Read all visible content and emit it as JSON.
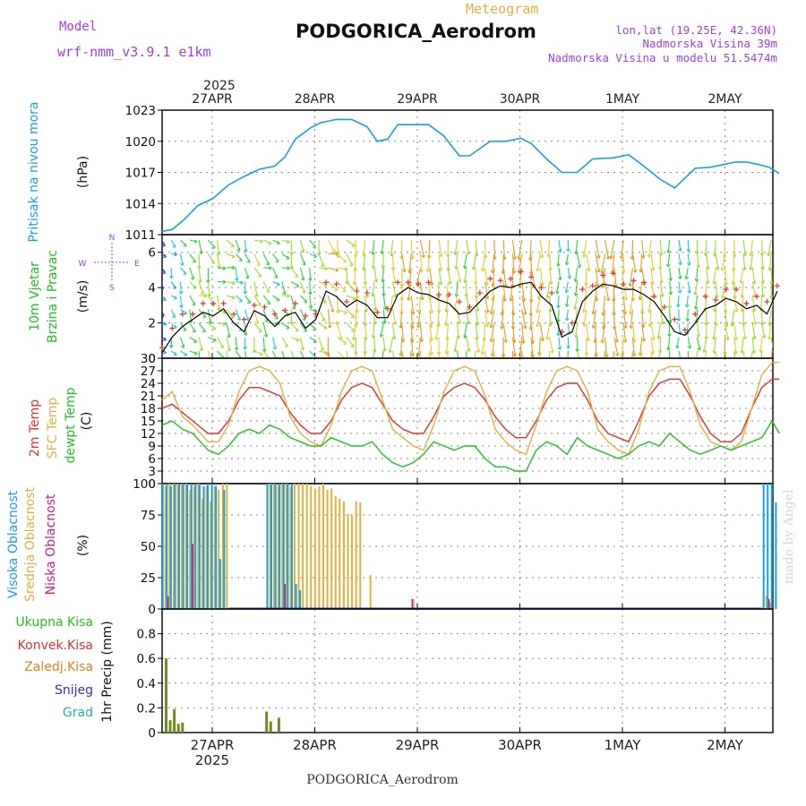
{
  "header": {
    "model_label": "Model",
    "model_name": "wrf-nmm_v3.9.1 e1km",
    "meteogram_label": "Meteogram",
    "station_title": "PODGORICA_Aerodrom",
    "coords": "lon,lat (19.25E, 42.36N)",
    "altitude": "Nadmorska Visina 39m",
    "model_altitude": "Nadmorska Visina u modelu 51.5474m",
    "footer": "PODGORICA_Aerodrom",
    "watermark": "made by Angel"
  },
  "colors": {
    "purple": "#a040e0",
    "gold": "#e0b040",
    "blue": "#1a9ee0",
    "green": "#20c020",
    "red": "#e03030",
    "orange": "#e08020",
    "olive": "#6e8a20",
    "indigo": "#3030c0",
    "magenta": "#c02090",
    "teal": "#20b0b0",
    "grid": "#888888"
  },
  "time_axis": {
    "year": "2025",
    "day_labels": [
      "27APR",
      "28APR",
      "29APR",
      "30APR",
      "1MAY",
      "2MAY"
    ]
  },
  "chart_data": [
    {
      "type": "line",
      "panel": "pressure",
      "ylabel_side": "Pritisak na nivou mora",
      "unit": "(hPa)",
      "ylim": [
        1011,
        1023
      ],
      "yticks": [
        1011,
        1014,
        1017,
        1020,
        1023
      ],
      "x_days": [
        0,
        0.1,
        0.2,
        0.35,
        0.5,
        0.65,
        0.8,
        0.95,
        1.1,
        1.2,
        1.3,
        1.45,
        1.55,
        1.7,
        1.85,
        2.0,
        2.1,
        2.2,
        2.3,
        2.45,
        2.6,
        2.75,
        2.9,
        3.0,
        3.2,
        3.35,
        3.5,
        3.6,
        3.75,
        3.9,
        4.05,
        4.2,
        4.4,
        4.55,
        4.7,
        4.85,
        5.0,
        5.2,
        5.35,
        5.5,
        5.6,
        5.7,
        5.8,
        5.92,
        6.02
      ],
      "series": [
        {
          "values": [
            1011.3,
            1011.5,
            1012.3,
            1013.8,
            1014.5,
            1015.8,
            1016.6,
            1017.3,
            1017.6,
            1018.5,
            1020.2,
            1021.3,
            1021.8,
            1022.1,
            1022.1,
            1021.4,
            1020.0,
            1020.2,
            1021.6,
            1021.6,
            1021.6,
            1020.5,
            1018.6,
            1018.6,
            1020.0,
            1020.0,
            1020.3,
            1019.8,
            1018.3,
            1017.0,
            1017.0,
            1018.3,
            1018.4,
            1018.7,
            1017.6,
            1016.4,
            1015.5,
            1017.4,
            1017.5,
            1017.8,
            1018.0,
            1018.0,
            1017.8,
            1017.5,
            1016.9
          ]
        }
      ]
    },
    {
      "type": "line",
      "panel": "wind",
      "ylabel_side": [
        "10m Vjetar",
        "Brzina i Pravac"
      ],
      "unit": "(m/s)",
      "compass": [
        "N",
        "S",
        "W",
        "E"
      ],
      "ylim": [
        0,
        7
      ],
      "yticks": [
        0,
        2,
        4,
        6
      ],
      "x_days": [
        0,
        0.1,
        0.2,
        0.3,
        0.4,
        0.5,
        0.6,
        0.7,
        0.8,
        0.9,
        1.0,
        1.1,
        1.2,
        1.3,
        1.4,
        1.5,
        1.6,
        1.7,
        1.8,
        1.9,
        2.0,
        2.1,
        2.2,
        2.3,
        2.4,
        2.5,
        2.6,
        2.7,
        2.8,
        2.9,
        3.0,
        3.1,
        3.2,
        3.3,
        3.4,
        3.5,
        3.6,
        3.7,
        3.8,
        3.9,
        4.0,
        4.1,
        4.2,
        4.3,
        4.4,
        4.5,
        4.6,
        4.7,
        4.8,
        4.9,
        5.0,
        5.1,
        5.2,
        5.3,
        5.4,
        5.5,
        5.6,
        5.7,
        5.8,
        5.9,
        6.0
      ],
      "series": [
        {
          "name": "speed",
          "values": [
            0.3,
            1.2,
            1.8,
            2.2,
            2.6,
            2.4,
            2.8,
            2.0,
            1.5,
            2.7,
            2.4,
            1.8,
            2.4,
            2.6,
            1.7,
            2.2,
            3.8,
            3.5,
            2.9,
            3.3,
            3.0,
            2.3,
            2.3,
            3.6,
            4.0,
            3.7,
            3.6,
            3.3,
            3.1,
            2.5,
            2.6,
            3.2,
            3.8,
            4.1,
            4.0,
            4.2,
            4.3,
            3.5,
            3.0,
            1.2,
            1.5,
            3.2,
            3.8,
            4.2,
            4.1,
            3.9,
            3.9,
            3.6,
            3.2,
            2.4,
            1.5,
            1.3,
            2.0,
            2.8,
            3.0,
            3.4,
            3.2,
            2.8,
            3.0,
            2.5,
            3.8
          ]
        }
      ]
    },
    {
      "type": "line",
      "panel": "temperature",
      "ylabel_side": [
        "2m Temp",
        "SFC Temp",
        "dewpt Temp"
      ],
      "unit": "(C)",
      "ylim": [
        0,
        30
      ],
      "yticks": [
        0,
        3,
        6,
        9,
        12,
        15,
        18,
        21,
        24,
        27,
        30
      ],
      "x_days": [
        0,
        0.1,
        0.2,
        0.3,
        0.45,
        0.55,
        0.65,
        0.75,
        0.85,
        0.95,
        1.05,
        1.15,
        1.25,
        1.35,
        1.45,
        1.55,
        1.65,
        1.75,
        1.85,
        1.95,
        2.05,
        2.15,
        2.25,
        2.35,
        2.45,
        2.55,
        2.65,
        2.75,
        2.85,
        2.95,
        3.05,
        3.15,
        3.25,
        3.35,
        3.45,
        3.55,
        3.65,
        3.75,
        3.85,
        3.95,
        4.05,
        4.15,
        4.25,
        4.35,
        4.45,
        4.55,
        4.65,
        4.75,
        4.85,
        4.95,
        5.05,
        5.15,
        5.25,
        5.35,
        5.45,
        5.55,
        5.65,
        5.75,
        5.85,
        5.95,
        6.02
      ],
      "series": [
        {
          "name": "2m Temp",
          "values": [
            18,
            19,
            17,
            15,
            12,
            12,
            15,
            20,
            23,
            23,
            22,
            21,
            17,
            14,
            12,
            12,
            15,
            20,
            23,
            24,
            23,
            19,
            15,
            13,
            12,
            12,
            16,
            21,
            23,
            24,
            23,
            20,
            16,
            13,
            11,
            11,
            15,
            20,
            23,
            24,
            24,
            20,
            15,
            12,
            11,
            10,
            15,
            21,
            24,
            25,
            25,
            21,
            16,
            12,
            10,
            10,
            12,
            18,
            23,
            25,
            25
          ]
        },
        {
          "name": "SFC Temp",
          "values": [
            20,
            22,
            16,
            14,
            10,
            10,
            14,
            22,
            27,
            28,
            27,
            24,
            16,
            12,
            10,
            9,
            14,
            22,
            27,
            28,
            27,
            20,
            13,
            11,
            9,
            8,
            14,
            22,
            27,
            28,
            27,
            21,
            13,
            10,
            8,
            7,
            14,
            22,
            27,
            28,
            27,
            22,
            13,
            10,
            8,
            7,
            13,
            22,
            27,
            28,
            28,
            22,
            14,
            10,
            9,
            8,
            10,
            18,
            26,
            29,
            29
          ]
        },
        {
          "name": "dewpt Temp",
          "values": [
            14,
            15,
            13,
            12,
            8,
            7,
            9,
            12,
            13,
            12,
            14,
            13,
            11,
            10,
            9,
            9,
            11,
            10,
            9,
            9,
            10,
            7,
            5,
            4,
            5,
            7,
            10,
            9,
            8,
            9,
            9,
            6,
            4,
            4,
            3,
            3,
            8,
            10,
            9,
            7,
            11,
            9,
            8,
            7,
            6,
            7,
            9,
            10,
            9,
            12,
            10,
            8,
            7,
            8,
            9,
            8,
            9,
            10,
            11,
            15,
            12
          ]
        }
      ]
    },
    {
      "type": "bar",
      "panel": "cloud",
      "ylabel_side": [
        "Visoka Oblacnost",
        "Srednja Oblacnost",
        "Niska Oblacnost"
      ],
      "unit": "(%)",
      "ylim": [
        0,
        100
      ],
      "yticks": [
        0,
        25,
        50,
        75,
        100
      ],
      "x_days": [
        0.02,
        0.06,
        0.1,
        0.14,
        0.18,
        0.22,
        0.26,
        0.3,
        0.34,
        0.38,
        0.42,
        0.46,
        0.5,
        0.54,
        0.58,
        0.62,
        1.04,
        1.08,
        1.12,
        1.16,
        1.2,
        1.24,
        1.28,
        1.32,
        1.36,
        1.4,
        1.44,
        1.48,
        1.52,
        1.56,
        1.6,
        1.64,
        1.68,
        1.72,
        1.76,
        1.8,
        1.84,
        1.88,
        1.92,
        2.02,
        2.44,
        5.88,
        5.92,
        5.96,
        6.0
      ],
      "series": [
        {
          "name": "Visoka Oblacnost",
          "values": [
            100,
            100,
            98,
            100,
            100,
            100,
            100,
            100,
            100,
            100,
            98,
            100,
            100,
            98,
            40,
            95,
            100,
            100,
            100,
            100,
            100,
            100,
            100,
            20,
            15,
            0,
            0,
            0,
            0,
            0,
            0,
            0,
            0,
            0,
            0,
            0,
            0,
            0,
            0,
            0,
            0,
            100,
            100,
            100,
            85
          ]
        },
        {
          "name": "Srednja Oblacnost",
          "values": [
            98,
            100,
            100,
            100,
            100,
            100,
            95,
            98,
            100,
            88,
            98,
            86,
            98,
            95,
            100,
            100,
            100,
            100,
            98,
            100,
            100,
            98,
            100,
            100,
            100,
            100,
            98,
            96,
            98,
            100,
            95,
            96,
            90,
            88,
            86,
            76,
            75,
            86,
            85,
            27,
            8,
            10,
            5,
            0,
            0
          ]
        },
        {
          "name": "Niska Oblacnost",
          "values": [
            0,
            10,
            0,
            0,
            0,
            0,
            0,
            52,
            0,
            0,
            0,
            0,
            0,
            0,
            0,
            0,
            0,
            0,
            0,
            0,
            20,
            0,
            0,
            0,
            0,
            0,
            0,
            0,
            0,
            0,
            0,
            0,
            0,
            0,
            0,
            0,
            0,
            0,
            0,
            0,
            8,
            0,
            8,
            0,
            0
          ]
        }
      ]
    },
    {
      "type": "bar",
      "panel": "precip",
      "ylabel_side": [
        "Ukupna Kisa",
        "Konvek.Kisa",
        "Zaledj.Kisa",
        "Snijeg",
        "Grad"
      ],
      "unit": "1hr Precip (mm)",
      "ylim": [
        0,
        1.0
      ],
      "yticks": [
        0,
        0.2,
        0.4,
        0.6,
        0.8
      ],
      "x_days": [
        0.04,
        0.08,
        0.12,
        0.16,
        0.2,
        1.02,
        1.06,
        1.14
      ],
      "series": [
        {
          "name": "Ukupna Kisa",
          "values": [
            0.6,
            0.1,
            0.19,
            0.07,
            0.08,
            0.17,
            0.09,
            0.12
          ]
        }
      ]
    }
  ]
}
